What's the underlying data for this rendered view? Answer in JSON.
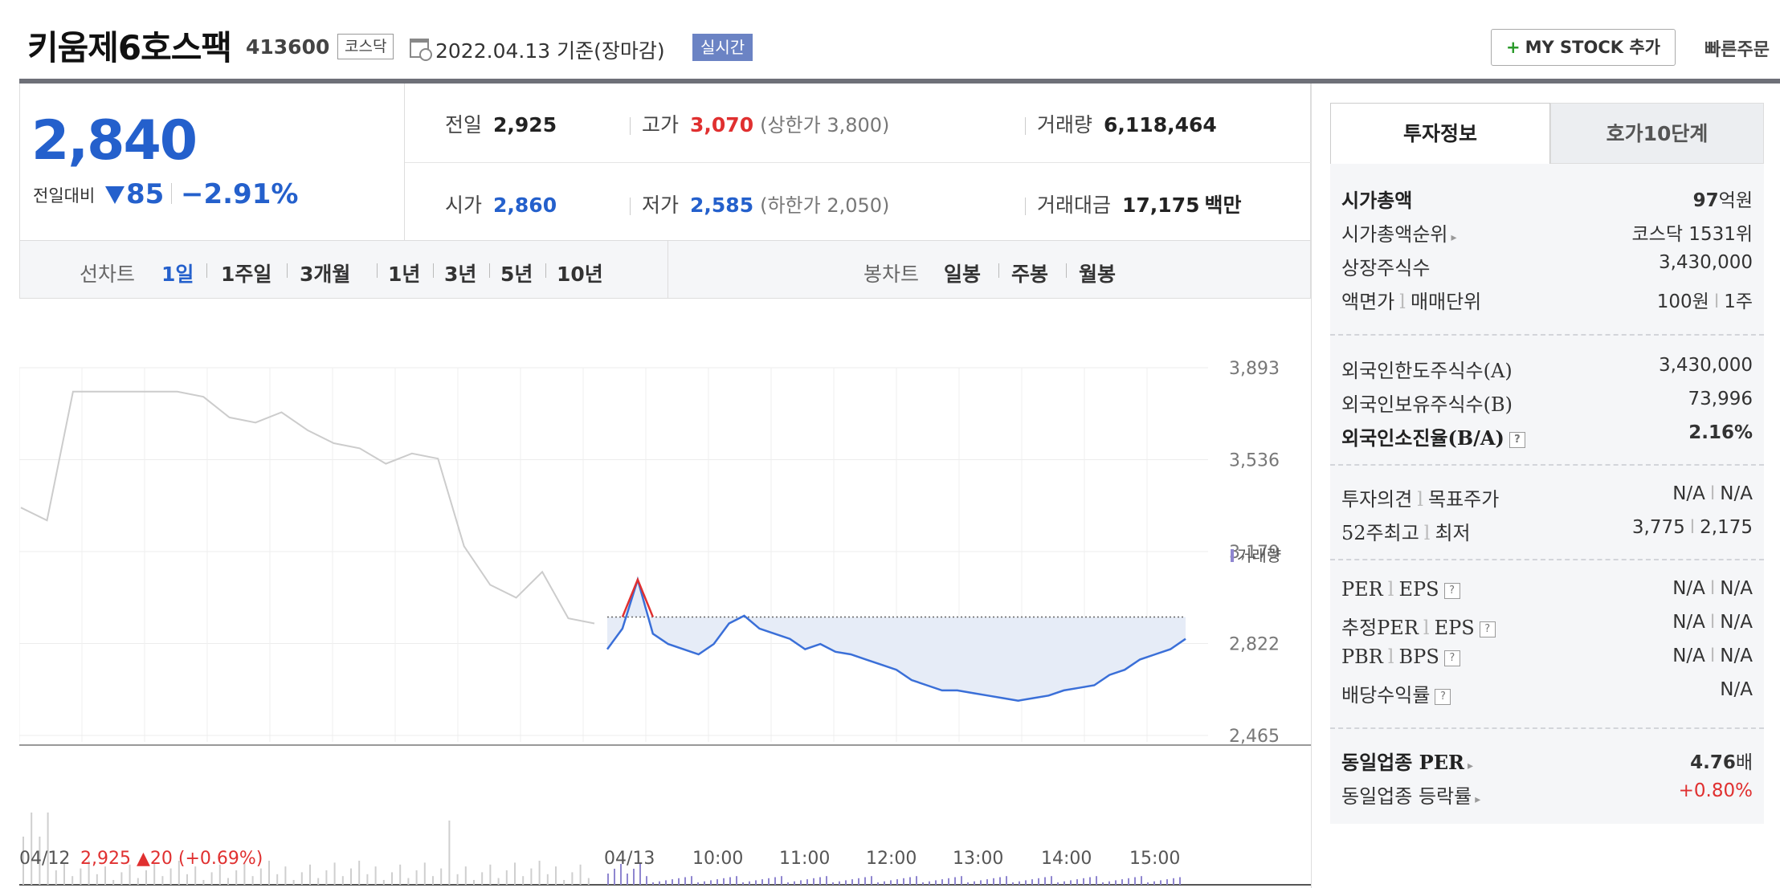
{
  "header": {
    "stock_name": "키움제6호스팩",
    "stock_code": "413600",
    "market": "코스닥",
    "date_text": "2022.04.13 기준(장마감)",
    "realtime": "실시간",
    "mystock_label": "MY STOCK 추가",
    "mystock_plus": "+",
    "quick_order": "빠른주문"
  },
  "price": {
    "current": "2,840",
    "change_label": "전일대비",
    "change": "85",
    "change_pct": "−2.91%",
    "direction": "down",
    "color": "#2460cc"
  },
  "info": {
    "prev_label": "전일",
    "prev": "2,925",
    "high_label": "고가",
    "high": "3,070",
    "upper_limit": "(상한가 3,800)",
    "volume_label": "거래량",
    "volume": "6,118,464",
    "open_label": "시가",
    "open": "2,860",
    "low_label": "저가",
    "low": "2,585",
    "lower_limit": "(하한가 2,050)",
    "amount_label": "거래대금",
    "amount": "17,175",
    "amount_unit": "백만"
  },
  "toolbar": {
    "line_chart_label": "선차트",
    "periods": [
      "1일",
      "1주일",
      "3개월",
      "1년",
      "3년",
      "5년",
      "10년"
    ],
    "active_period": "1일",
    "candle_chart_label": "봉차트",
    "candles": [
      "일봉",
      "주봉",
      "월봉"
    ]
  },
  "chart_data": {
    "type": "line",
    "y_ticks": [
      "3,893",
      "3,536",
      "3,179",
      "2,822",
      "2,465"
    ],
    "ylim": [
      2465,
      3893
    ],
    "x_labels": [
      "04/12",
      "04/13",
      "10:00",
      "11:00",
      "12:00",
      "13:00",
      "14:00",
      "15:00"
    ],
    "prev_day_summary": {
      "close": "2,925",
      "change": "▲20",
      "pct": "(+0.69%)"
    },
    "base_price": 2925,
    "volume_legend": "거래량",
    "series": [
      {
        "values_prev_day": [
          3350,
          3300,
          3800,
          3800,
          3800,
          3800,
          3800,
          3780,
          3700,
          3680,
          3720,
          3650,
          3600,
          3580,
          3520,
          3560,
          3540,
          3200,
          3050,
          3000,
          3100,
          2920,
          2900
        ],
        "values_today": [
          2800,
          2880,
          3070,
          2860,
          2820,
          2800,
          2780,
          2820,
          2900,
          2930,
          2880,
          2860,
          2840,
          2800,
          2820,
          2790,
          2780,
          2760,
          2740,
          2720,
          2680,
          2660,
          2640,
          2640,
          2630,
          2620,
          2610,
          2600,
          2610,
          2620,
          2640,
          2650,
          2660,
          2700,
          2720,
          2760,
          2780,
          2800,
          2840
        ]
      }
    ],
    "colors": {
      "line": "#3a6fd8",
      "fill": "#e6ecf7",
      "prev_line": "#cccccc",
      "up": "#e03030",
      "volume": "#8f86d0"
    }
  },
  "side": {
    "tab_active": "투자정보",
    "tab_inactive": "호가10단계",
    "market_cap_label": "시가총액",
    "market_cap_num": "97",
    "market_cap_unit": "억원",
    "cap_rank_label": "시가총액순위",
    "cap_rank": "코스닥 1531위",
    "listed_shares_label": "상장주식수",
    "listed_shares": "3,430,000",
    "par_label": "액면가",
    "unit_label": "매매단위",
    "par": "100원",
    "unit": "1주",
    "foreign_limit_label": "외국인한도주식수(A)",
    "foreign_limit": "3,430,000",
    "foreign_hold_label": "외국인보유주식수(B)",
    "foreign_hold": "73,996",
    "foreign_ratio_label": "외국인소진율(B/A)",
    "foreign_ratio": "2.16%",
    "opinion_label": "투자의견",
    "target_label": "목표주가",
    "opinion": "N/A",
    "target": "N/A",
    "w52_label": "52주최고",
    "w52_low_label": "최저",
    "w52_high": "3,775",
    "w52_low": "2,175",
    "per_label": "PER",
    "eps_label": "EPS",
    "per": "N/A",
    "eps": "N/A",
    "est_per_label": "추정PER",
    "est_per": "N/A",
    "est_eps": "N/A",
    "pbr_label": "PBR",
    "bps_label": "BPS",
    "pbr": "N/A",
    "bps": "N/A",
    "dividend_label": "배당수익률",
    "dividend": "N/A",
    "sector_per_label": "동일업종 PER",
    "sector_per_num": "4.76",
    "sector_per_unit": "배",
    "sector_rate_label": "동일업종 등락률",
    "sector_rate": "+0.80%",
    "sep": "l",
    "qmark": "?"
  }
}
